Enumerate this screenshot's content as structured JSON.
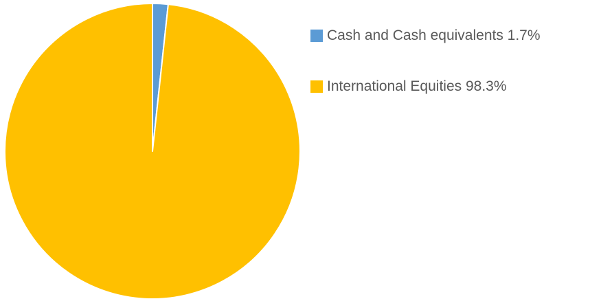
{
  "chart_data": {
    "type": "pie",
    "title": "",
    "slices": [
      {
        "label": "Cash and Cash equivalents",
        "value": 1.7,
        "color": "#5B9BD5"
      },
      {
        "label": "International Equities",
        "value": 98.3,
        "color": "#FFC000"
      }
    ],
    "legend": {
      "placement": "right",
      "items": [
        {
          "text": "Cash and Cash equivalents 1.7%",
          "color": "#5B9BD5"
        },
        {
          "text": "International Equities 98.3%",
          "color": "#FFC000"
        }
      ]
    }
  }
}
